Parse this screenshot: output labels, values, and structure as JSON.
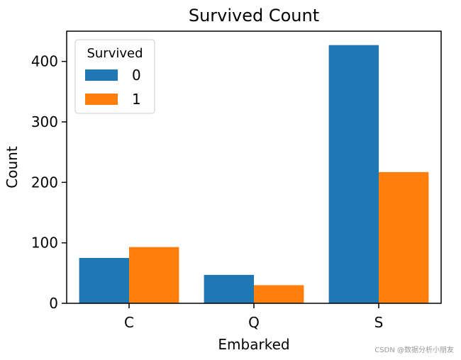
{
  "chart_data": {
    "type": "bar",
    "title": "Survived Count",
    "xlabel": "Embarked",
    "ylabel": "Count",
    "categories": [
      "C",
      "Q",
      "S"
    ],
    "series": [
      {
        "name": "0",
        "values": [
          75,
          47,
          427
        ],
        "color": "#1f77b4"
      },
      {
        "name": "1",
        "values": [
          93,
          30,
          217
        ],
        "color": "#ff7f0e"
      }
    ],
    "ylim": [
      0,
      450
    ],
    "yticks": [
      0,
      100,
      200,
      300,
      400
    ],
    "ytick_labels": [
      "0",
      "100",
      "200",
      "300",
      "400"
    ],
    "grid": false,
    "legend": {
      "title": "Survived",
      "placement": "top-left"
    }
  },
  "watermark": "CSDN @数据分析小朋友"
}
